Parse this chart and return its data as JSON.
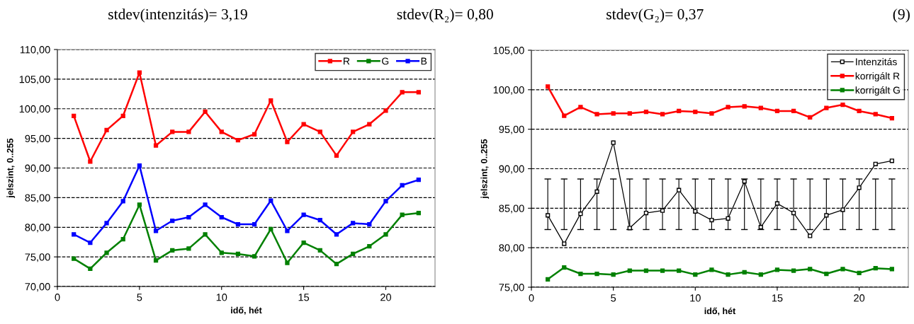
{
  "chart_data": [
    {
      "type": "line",
      "xlabel": "idő, hét",
      "ylabel": "jelszint, 0..255",
      "annotations": [
        "stdev(intenzitás)= 3,19",
        "stdev(R₂)= 0,80",
        "stdev(G₂)= 0,37",
        "(9)"
      ],
      "x": [
        1,
        2,
        3,
        4,
        5,
        6,
        7,
        8,
        9,
        10,
        11,
        12,
        13,
        14,
        15,
        16,
        17,
        18,
        19,
        20,
        21,
        22
      ],
      "series": [
        {
          "name": "R",
          "color": "#ff0000",
          "values": [
            98.8,
            91.1,
            96.4,
            98.8,
            106.1,
            93.8,
            96.1,
            96.1,
            99.5,
            96.1,
            94.7,
            95.7,
            101.4,
            94.4,
            97.4,
            96.1,
            92.1,
            96.1,
            97.4,
            99.7,
            102.8,
            102.8
          ]
        },
        {
          "name": "G",
          "color": "#008000",
          "values": [
            74.7,
            73.0,
            75.7,
            78.0,
            83.8,
            74.4,
            76.1,
            76.4,
            78.8,
            75.7,
            75.5,
            75.1,
            79.7,
            74.0,
            77.4,
            76.1,
            73.8,
            75.5,
            76.8,
            78.8,
            82.1,
            82.4
          ]
        },
        {
          "name": "B",
          "color": "#0000ff",
          "values": [
            78.8,
            77.4,
            80.7,
            84.4,
            90.4,
            79.4,
            81.1,
            81.7,
            83.8,
            81.7,
            80.5,
            80.5,
            84.5,
            79.4,
            82.1,
            81.2,
            78.8,
            80.7,
            80.5,
            84.4,
            87.1,
            88.0
          ]
        }
      ],
      "xlim": [
        0,
        23
      ],
      "xticks": [
        0,
        5,
        10,
        15,
        20
      ],
      "ylim": [
        70,
        110
      ],
      "yticks": [
        {
          "value": 70,
          "label": "70,00"
        },
        {
          "value": 75,
          "label": "75,00"
        },
        {
          "value": 80,
          "label": "80,00"
        },
        {
          "value": 85,
          "label": "85,00"
        },
        {
          "value": 90,
          "label": "90,00"
        },
        {
          "value": 95,
          "label": "95,00"
        },
        {
          "value": 100,
          "label": "100,00"
        },
        {
          "value": 105,
          "label": "105,00"
        },
        {
          "value": 110,
          "label": "110,00"
        }
      ],
      "grid": "y",
      "legend": "top right",
      "marker": "square"
    },
    {
      "type": "line",
      "xlabel": "idő, hét",
      "ylabel": "jelszint, 0..255",
      "x": [
        1,
        2,
        3,
        4,
        5,
        6,
        7,
        8,
        9,
        10,
        11,
        12,
        13,
        14,
        15,
        16,
        17,
        18,
        19,
        20,
        21,
        22
      ],
      "series": [
        {
          "name": "Intenzitás",
          "color": "#000000",
          "values": [
            84.1,
            80.5,
            84.3,
            87.1,
            93.3,
            82.5,
            84.4,
            84.7,
            87.3,
            84.6,
            83.5,
            83.7,
            88.4,
            82.6,
            85.6,
            84.4,
            81.5,
            84.1,
            84.8,
            87.6,
            90.6,
            91.0
          ]
        },
        {
          "name": "korrigált R",
          "color": "#ff0000",
          "values": [
            100.4,
            96.7,
            97.8,
            96.9,
            97.0,
            97.0,
            97.2,
            96.9,
            97.3,
            97.2,
            97.0,
            97.8,
            97.9,
            97.7,
            97.3,
            97.3,
            96.5,
            97.7,
            98.1,
            97.3,
            96.9,
            96.4
          ]
        },
        {
          "name": "korrigált G",
          "color": "#008000",
          "values": [
            76.0,
            77.5,
            76.7,
            76.7,
            76.6,
            77.1,
            77.1,
            77.1,
            77.1,
            76.6,
            77.2,
            76.6,
            76.9,
            76.6,
            77.2,
            77.1,
            77.3,
            76.7,
            77.3,
            76.8,
            77.4,
            77.3
          ]
        },
        {
          "type": "bar",
          "color": "#000000",
          "base": [
            82.3,
            82.3,
            82.3,
            82.3,
            82.3,
            82.3,
            82.3,
            82.3,
            82.3,
            82.3,
            82.3,
            82.3,
            82.3,
            82.3,
            82.3,
            82.3,
            82.3,
            82.3,
            82.3,
            82.3,
            82.3,
            82.3
          ],
          "values": [
            6.4,
            6.4,
            6.4,
            6.4,
            6.4,
            6.4,
            6.4,
            6.4,
            6.4,
            6.4,
            6.4,
            6.4,
            6.4,
            6.4,
            6.4,
            6.4,
            6.4,
            6.4,
            6.4,
            6.4,
            6.4,
            6.4
          ]
        }
      ],
      "xlim": [
        0,
        23
      ],
      "xticks": [
        0,
        5,
        10,
        15,
        20
      ],
      "ylim": [
        75,
        105
      ],
      "yticks": [
        {
          "value": 75,
          "label": "75,00"
        },
        {
          "value": 80,
          "label": "80,00"
        },
        {
          "value": 85,
          "label": "85,00"
        },
        {
          "value": 90,
          "label": "90,00"
        },
        {
          "value": 95,
          "label": "95,00"
        },
        {
          "value": 100,
          "label": "100,00"
        },
        {
          "value": 105,
          "label": "105,00"
        }
      ],
      "grid": "y",
      "legend": "top right",
      "marker": "square"
    }
  ]
}
